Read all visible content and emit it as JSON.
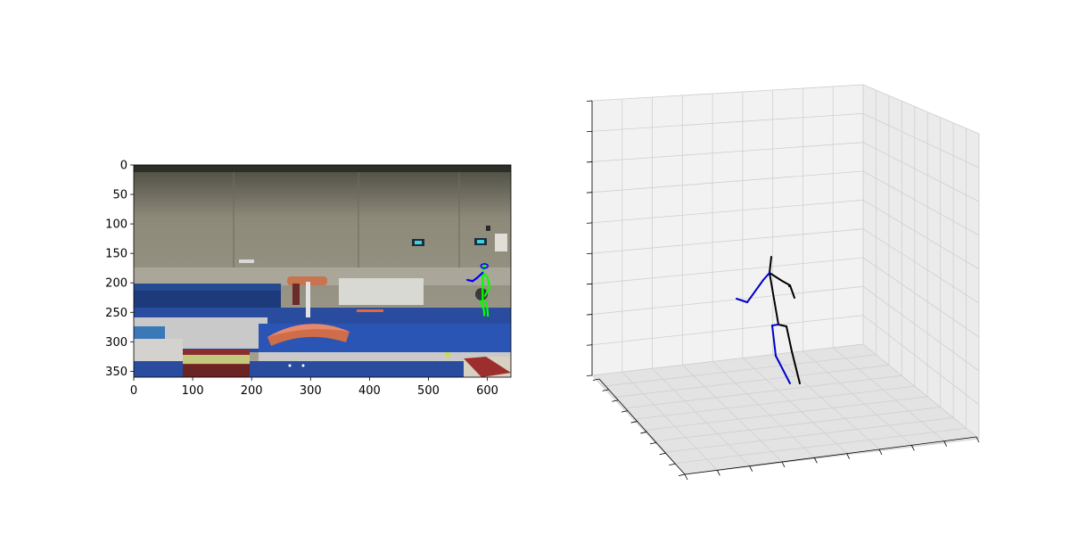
{
  "chart_data": [
    {
      "type": "image",
      "xlim": [
        0,
        640
      ],
      "ylim": [
        360,
        0
      ],
      "xticks": [
        0,
        100,
        200,
        300,
        400,
        500,
        600
      ],
      "yticks": [
        0,
        50,
        100,
        150,
        200,
        250,
        300,
        350
      ],
      "xtick_labels": [
        "0",
        "100",
        "200",
        "300",
        "400",
        "500",
        "600"
      ],
      "ytick_labels": [
        "0",
        "50",
        "100",
        "150",
        "200",
        "250",
        "300",
        "350"
      ],
      "pose_2d": {
        "right_color": "#00ff00",
        "left_color": "#0000ff",
        "joints": {
          "head": [
            595,
            170
          ],
          "neck": [
            592,
            183
          ],
          "pelvis": [
            592,
            230
          ],
          "l_shoulder": [
            600,
            190
          ],
          "l_elbow": [
            604,
            208
          ],
          "l_wrist": [
            596,
            222
          ],
          "r_shoulder": [
            582,
            192
          ],
          "r_elbow": [
            575,
            197
          ],
          "r_wrist": [
            566,
            195
          ],
          "l_hip": [
            597,
            232
          ],
          "l_knee": [
            600,
            244
          ],
          "l_ankle": [
            601,
            256
          ],
          "r_hip": [
            588,
            232
          ],
          "r_knee": [
            594,
            245
          ],
          "r_ankle": [
            595,
            255
          ]
        }
      }
    },
    {
      "type": "scatter3d",
      "grid": true,
      "tick_labels_visible": false,
      "bone_colors": {
        "right": "#000000",
        "left": "#0000cc"
      }
    }
  ]
}
